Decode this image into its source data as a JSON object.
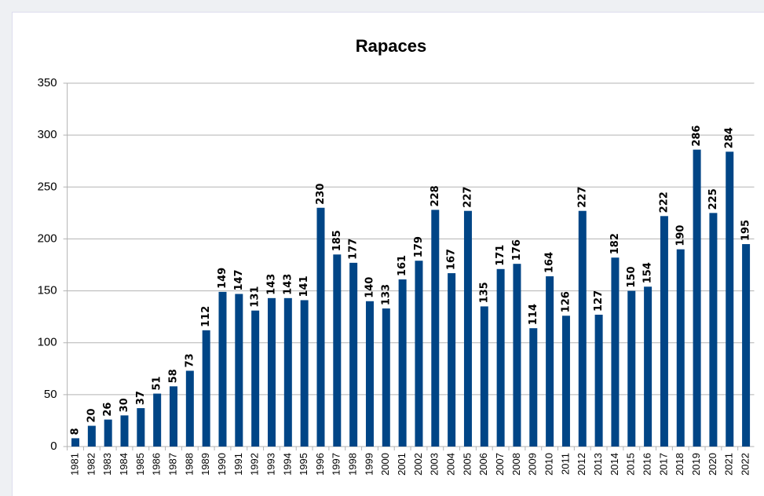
{
  "chart_data": {
    "type": "bar",
    "title": "Rapaces",
    "categories": [
      "1981",
      "1982",
      "1983",
      "1984",
      "1985",
      "1986",
      "1987",
      "1988",
      "1989",
      "1990",
      "1991",
      "1992",
      "1993",
      "1994",
      "1995",
      "1996",
      "1997",
      "1998",
      "1999",
      "2000",
      "2001",
      "2002",
      "2003",
      "2004",
      "2005",
      "2006",
      "2007",
      "2008",
      "2009",
      "2010",
      "2011",
      "2012",
      "2013",
      "2014",
      "2015",
      "2016",
      "2017",
      "2018",
      "2019",
      "2020",
      "2021",
      "2022"
    ],
    "values": [
      8,
      20,
      26,
      30,
      37,
      51,
      58,
      73,
      112,
      149,
      147,
      131,
      143,
      143,
      141,
      230,
      185,
      177,
      140,
      133,
      161,
      179,
      228,
      167,
      227,
      135,
      171,
      176,
      114,
      164,
      126,
      227,
      127,
      182,
      150,
      154,
      222,
      190,
      286,
      225,
      284,
      195
    ],
    "color": "#004586",
    "ylim": [
      0,
      350
    ],
    "yticks": [
      0,
      50,
      100,
      150,
      200,
      250,
      300,
      350
    ],
    "grid": true
  }
}
